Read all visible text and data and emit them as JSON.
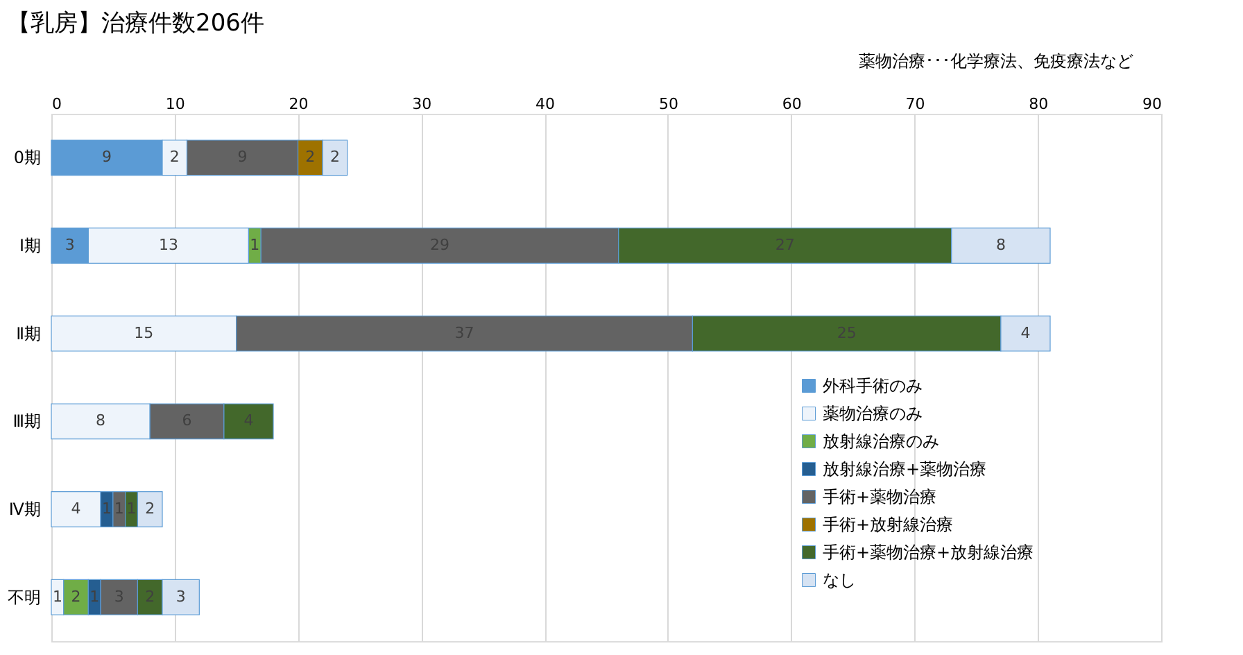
{
  "chart_data": {
    "type": "bar",
    "orientation": "horizontal",
    "stacked": true,
    "title": "【乳房】治療件数206件",
    "annotations": [
      "薬物治療･･･化学療法、免疫療法など"
    ],
    "categories": [
      "0期",
      "Ⅰ期",
      "Ⅱ期",
      "Ⅲ期",
      "Ⅳ期",
      "不明"
    ],
    "series": [
      {
        "name": "外科手術のみ",
        "color": "#5b9bd5",
        "values": [
          9,
          3,
          null,
          null,
          null,
          null
        ]
      },
      {
        "name": "薬物治療のみ",
        "color": "#eef4fb",
        "values": [
          2,
          13,
          15,
          8,
          4,
          1
        ]
      },
      {
        "name": "放射線治療のみ",
        "color": "#70ad47",
        "values": [
          null,
          1,
          null,
          null,
          null,
          2
        ]
      },
      {
        "name": "放射線治療+薬物治療",
        "color": "#255e91",
        "values": [
          null,
          null,
          null,
          null,
          1,
          1
        ]
      },
      {
        "name": "手術+薬物治療",
        "color": "#636363",
        "values": [
          9,
          29,
          37,
          6,
          1,
          3
        ]
      },
      {
        "name": "手術+放射線治療",
        "color": "#9e7200",
        "values": [
          2,
          null,
          null,
          null,
          null,
          null
        ]
      },
      {
        "name": "手術+薬物治療+放射線治療",
        "color": "#43682b",
        "values": [
          null,
          27,
          25,
          4,
          1,
          2
        ]
      },
      {
        "name": "なし",
        "color": "#d6e3f3",
        "values": [
          2,
          8,
          4,
          null,
          2,
          3
        ]
      }
    ],
    "xlim": [
      0,
      90
    ],
    "xticks": [
      0,
      10,
      20,
      30,
      40,
      50,
      60,
      70,
      80,
      90
    ],
    "grid": "x",
    "legend": "bottom right",
    "data_labels": true
  }
}
